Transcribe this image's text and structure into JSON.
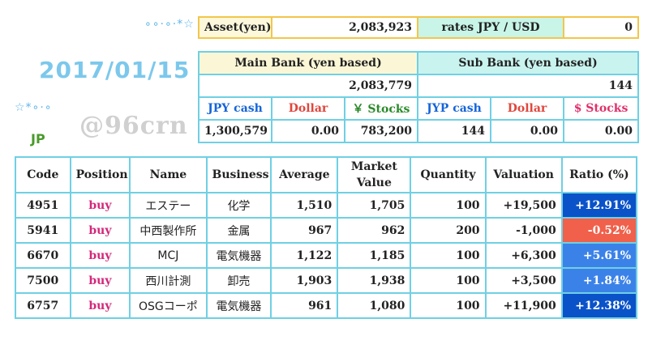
{
  "date": "2017/01/15",
  "tag": "JP",
  "watermark": "@96crn",
  "sparkle_top": "∘∘⋅∘⋅*☆",
  "sparkle_left": "☆*∘⋅∘",
  "asset": {
    "label": "Asset(yen)",
    "value": "2,083,923",
    "rates_label": "rates  JPY / USD",
    "rate_value": "0"
  },
  "main_bank": {
    "title": "Main Bank (yen based)",
    "total": "2,083,779",
    "cols": [
      "JPY cash",
      "Dollar",
      "￥ Stocks"
    ],
    "vals": [
      "1,300,579",
      "0.00",
      "783,200"
    ]
  },
  "sub_bank": {
    "title": "Sub Bank (yen based)",
    "total": "144",
    "cols": [
      "JYP cash",
      "Dollar",
      "$ Stocks"
    ],
    "vals": [
      "144",
      "0.00",
      "0.00"
    ]
  },
  "positions": {
    "headers": [
      "Code",
      "Position",
      "Name",
      "Business",
      "Average",
      "Market Value",
      "Quantity",
      "Valuation",
      "Ratio (%)"
    ],
    "rows": [
      {
        "code": "4951",
        "position": "buy",
        "name": "エステー",
        "business": "化学",
        "average": "1,510",
        "market": "1,705",
        "qty": "100",
        "valuation": "+19,500",
        "ratio": "+12.91%",
        "ratio_level": "dark"
      },
      {
        "code": "5941",
        "position": "buy",
        "name": "中西製作所",
        "business": "金属",
        "average": "967",
        "market": "962",
        "qty": "200",
        "valuation": "-1,000",
        "ratio": "-0.52%",
        "ratio_level": "neg"
      },
      {
        "code": "6670",
        "position": "buy",
        "name": "MCJ",
        "business": "電気機器",
        "average": "1,122",
        "market": "1,185",
        "qty": "100",
        "valuation": "+6,300",
        "ratio": "+5.61%",
        "ratio_level": "mid"
      },
      {
        "code": "7500",
        "position": "buy",
        "name": "西川計測",
        "business": "卸売",
        "average": "1,903",
        "market": "1,938",
        "qty": "100",
        "valuation": "+3,500",
        "ratio": "+1.84%",
        "ratio_level": "mid"
      },
      {
        "code": "6757",
        "position": "buy",
        "name": "OSGコーポ",
        "business": "電気機器",
        "average": "961",
        "market": "1,080",
        "qty": "100",
        "valuation": "+11,900",
        "ratio": "+12.38%",
        "ratio_level": "dark"
      }
    ]
  }
}
